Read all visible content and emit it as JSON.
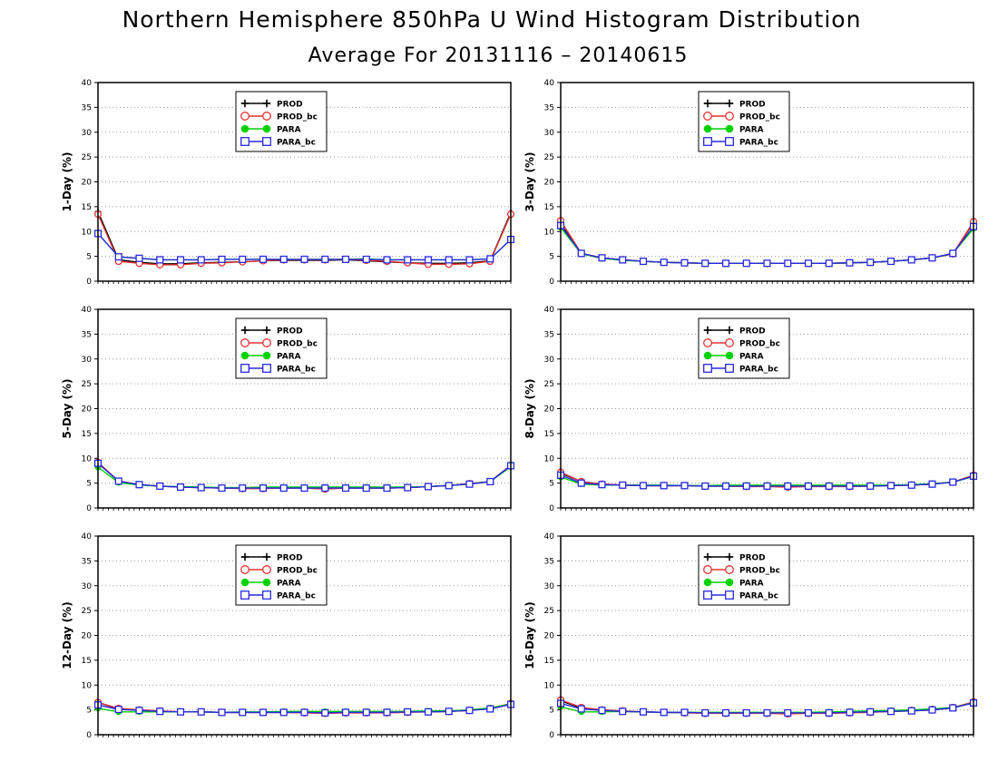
{
  "figure": {
    "title": "Northern Hemisphere 850hPa U Wind Histogram Distribution",
    "subtitle": "Average For 20131116 – 20140615"
  },
  "legend": {
    "placement": "upper-left-inside",
    "entries": [
      "PROD",
      "PROD_bc",
      "PARA",
      "PARA_bc"
    ]
  },
  "series_styles": [
    {
      "name": "PROD",
      "color": "#000000",
      "marker": "plus"
    },
    {
      "name": "PROD_bc",
      "color": "#e83232",
      "marker": "open-circle"
    },
    {
      "name": "PARA",
      "color": "#00d200",
      "marker": "filled-circle"
    },
    {
      "name": "PARA_bc",
      "color": "#2828e6",
      "marker": "open-square"
    }
  ],
  "chart_data": [
    {
      "type": "line",
      "ylabel": "1-Day (%)",
      "ylim": [
        0,
        40
      ],
      "yticks": [
        0,
        5,
        10,
        15,
        20,
        25,
        30,
        35,
        40
      ],
      "grid": "horizontal-dotted",
      "x": [
        1,
        2,
        3,
        4,
        5,
        6,
        7,
        8,
        9,
        10,
        11,
        12,
        13,
        14,
        15,
        16,
        17,
        18,
        19,
        20,
        21
      ],
      "series": [
        {
          "name": "PROD",
          "values": [
            14.0,
            4.3,
            3.8,
            3.5,
            3.5,
            3.7,
            3.8,
            3.9,
            4.1,
            4.2,
            4.2,
            4.2,
            4.3,
            4.1,
            3.9,
            3.7,
            3.6,
            3.6,
            3.7,
            4.1,
            13.8
          ]
        },
        {
          "name": "PROD_bc",
          "values": [
            13.5,
            4.0,
            3.6,
            3.3,
            3.3,
            3.6,
            3.7,
            3.9,
            4.1,
            4.3,
            4.3,
            4.3,
            4.4,
            4.2,
            4.0,
            3.7,
            3.4,
            3.4,
            3.5,
            4.0,
            13.5
          ]
        },
        {
          "name": "PARA",
          "values": [
            9.6,
            4.9,
            4.6,
            4.3,
            4.3,
            4.3,
            4.4,
            4.4,
            4.4,
            4.4,
            4.4,
            4.4,
            4.4,
            4.5,
            4.3,
            4.3,
            4.3,
            4.3,
            4.3,
            4.5,
            8.4
          ]
        },
        {
          "name": "PARA_bc",
          "values": [
            9.6,
            4.9,
            4.6,
            4.3,
            4.3,
            4.3,
            4.4,
            4.4,
            4.4,
            4.4,
            4.4,
            4.4,
            4.4,
            4.4,
            4.3,
            4.3,
            4.3,
            4.3,
            4.3,
            4.5,
            8.4
          ]
        }
      ]
    },
    {
      "type": "line",
      "ylabel": "3-Day (%)",
      "ylim": [
        0,
        40
      ],
      "yticks": [
        0,
        5,
        10,
        15,
        20,
        25,
        30,
        35,
        40
      ],
      "grid": "horizontal-dotted",
      "x": [
        1,
        2,
        3,
        4,
        5,
        6,
        7,
        8,
        9,
        10,
        11,
        12,
        13,
        14,
        15,
        16,
        17,
        18,
        19,
        20,
        21
      ],
      "series": [
        {
          "name": "PROD",
          "values": [
            11.5,
            5.6,
            4.7,
            4.3,
            4.0,
            3.8,
            3.7,
            3.6,
            3.6,
            3.6,
            3.6,
            3.6,
            3.6,
            3.6,
            3.7,
            3.8,
            4.0,
            4.3,
            4.7,
            5.5,
            11.8
          ]
        },
        {
          "name": "PROD_bc",
          "values": [
            12.2,
            5.6,
            4.7,
            4.3,
            4.0,
            3.8,
            3.7,
            3.6,
            3.6,
            3.6,
            3.6,
            3.6,
            3.6,
            3.6,
            3.7,
            3.8,
            4.0,
            4.3,
            4.7,
            5.5,
            12.0
          ]
        },
        {
          "name": "PARA",
          "values": [
            10.8,
            5.5,
            4.6,
            4.2,
            4.0,
            3.8,
            3.7,
            3.6,
            3.6,
            3.6,
            3.6,
            3.6,
            3.6,
            3.6,
            3.7,
            3.8,
            4.0,
            4.3,
            4.7,
            5.6,
            10.6
          ]
        },
        {
          "name": "PARA_bc",
          "values": [
            11.2,
            5.6,
            4.7,
            4.3,
            4.0,
            3.8,
            3.7,
            3.6,
            3.6,
            3.6,
            3.6,
            3.6,
            3.6,
            3.6,
            3.7,
            3.8,
            4.0,
            4.3,
            4.7,
            5.6,
            11.0
          ]
        }
      ]
    },
    {
      "type": "line",
      "ylabel": "5-Day (%)",
      "ylim": [
        0,
        40
      ],
      "yticks": [
        0,
        5,
        10,
        15,
        20,
        25,
        30,
        35,
        40
      ],
      "grid": "horizontal-dotted",
      "x": [
        1,
        2,
        3,
        4,
        5,
        6,
        7,
        8,
        9,
        10,
        11,
        12,
        13,
        14,
        15,
        16,
        17,
        18,
        19,
        20,
        21
      ],
      "series": [
        {
          "name": "PROD",
          "values": [
            9.0,
            5.4,
            4.7,
            4.4,
            4.2,
            4.1,
            4.0,
            4.0,
            4.0,
            4.0,
            4.0,
            3.9,
            4.0,
            4.0,
            4.0,
            4.1,
            4.3,
            4.5,
            4.9,
            5.3,
            8.6
          ]
        },
        {
          "name": "PROD_bc",
          "values": [
            9.2,
            5.4,
            4.7,
            4.4,
            4.2,
            4.1,
            4.0,
            3.9,
            3.9,
            4.0,
            4.0,
            3.8,
            4.0,
            4.0,
            4.0,
            4.1,
            4.3,
            4.5,
            4.9,
            5.3,
            8.6
          ]
        },
        {
          "name": "PARA",
          "values": [
            8.2,
            5.1,
            4.6,
            4.4,
            4.3,
            4.2,
            4.1,
            4.1,
            4.2,
            4.2,
            4.2,
            4.2,
            4.2,
            4.2,
            4.2,
            4.2,
            4.3,
            4.5,
            4.8,
            5.3,
            8.3
          ]
        },
        {
          "name": "PARA_bc",
          "values": [
            9.0,
            5.4,
            4.7,
            4.4,
            4.2,
            4.1,
            4.0,
            4.0,
            4.0,
            4.0,
            4.0,
            4.0,
            4.0,
            4.0,
            4.0,
            4.1,
            4.3,
            4.5,
            4.8,
            5.3,
            8.5
          ]
        }
      ]
    },
    {
      "type": "line",
      "ylabel": "8-Day (%)",
      "ylim": [
        0,
        40
      ],
      "yticks": [
        0,
        5,
        10,
        15,
        20,
        25,
        30,
        35,
        40
      ],
      "grid": "horizontal-dotted",
      "x": [
        1,
        2,
        3,
        4,
        5,
        6,
        7,
        8,
        9,
        10,
        11,
        12,
        13,
        14,
        15,
        16,
        17,
        18,
        19,
        20,
        21
      ],
      "series": [
        {
          "name": "PROD",
          "values": [
            7.0,
            5.3,
            4.8,
            4.6,
            4.5,
            4.5,
            4.5,
            4.4,
            4.4,
            4.4,
            4.4,
            4.3,
            4.4,
            4.4,
            4.4,
            4.4,
            4.5,
            4.6,
            4.8,
            5.2,
            6.5
          ]
        },
        {
          "name": "PROD_bc",
          "values": [
            7.2,
            5.3,
            4.8,
            4.6,
            4.5,
            4.5,
            4.5,
            4.4,
            4.4,
            4.3,
            4.3,
            4.2,
            4.3,
            4.3,
            4.3,
            4.4,
            4.5,
            4.6,
            4.8,
            5.2,
            6.6
          ]
        },
        {
          "name": "PARA",
          "values": [
            6.2,
            4.8,
            4.6,
            4.6,
            4.6,
            4.6,
            4.5,
            4.5,
            4.6,
            4.6,
            4.6,
            4.6,
            4.6,
            4.6,
            4.6,
            4.6,
            4.6,
            4.7,
            4.9,
            5.2,
            6.3
          ]
        },
        {
          "name": "PARA_bc",
          "values": [
            6.6,
            5.0,
            4.7,
            4.6,
            4.5,
            4.5,
            4.5,
            4.4,
            4.4,
            4.4,
            4.4,
            4.4,
            4.4,
            4.4,
            4.4,
            4.4,
            4.5,
            4.6,
            4.8,
            5.2,
            6.4
          ]
        }
      ]
    },
    {
      "type": "line",
      "ylabel": "12-Day (%)",
      "ylim": [
        0,
        40
      ],
      "yticks": [
        0,
        5,
        10,
        15,
        20,
        25,
        30,
        35,
        40
      ],
      "grid": "horizontal-dotted",
      "x": [
        1,
        2,
        3,
        4,
        5,
        6,
        7,
        8,
        9,
        10,
        11,
        12,
        13,
        14,
        15,
        16,
        17,
        18,
        19,
        20,
        21
      ],
      "series": [
        {
          "name": "PROD",
          "values": [
            6.5,
            5.2,
            4.9,
            4.7,
            4.6,
            4.6,
            4.5,
            4.5,
            4.5,
            4.5,
            4.5,
            4.4,
            4.5,
            4.5,
            4.5,
            4.6,
            4.6,
            4.7,
            4.9,
            5.3,
            6.2
          ]
        },
        {
          "name": "PROD_bc",
          "values": [
            6.5,
            5.3,
            5.0,
            4.8,
            4.6,
            4.6,
            4.5,
            4.5,
            4.5,
            4.5,
            4.4,
            4.3,
            4.4,
            4.4,
            4.4,
            4.5,
            4.6,
            4.7,
            4.9,
            5.3,
            6.3
          ]
        },
        {
          "name": "PARA",
          "values": [
            5.3,
            4.6,
            4.6,
            4.6,
            4.6,
            4.6,
            4.5,
            4.6,
            4.6,
            4.7,
            4.7,
            4.7,
            4.7,
            4.7,
            4.7,
            4.7,
            4.8,
            4.8,
            5.0,
            5.4,
            6.2
          ]
        },
        {
          "name": "PARA_bc",
          "values": [
            6.0,
            5.1,
            4.9,
            4.7,
            4.6,
            4.6,
            4.5,
            4.5,
            4.5,
            4.5,
            4.5,
            4.4,
            4.5,
            4.5,
            4.5,
            4.6,
            4.6,
            4.7,
            4.9,
            5.2,
            6.1
          ]
        }
      ]
    },
    {
      "type": "line",
      "ylabel": "16-Day (%)",
      "ylim": [
        0,
        40
      ],
      "yticks": [
        0,
        5,
        10,
        15,
        20,
        25,
        30,
        35,
        40
      ],
      "grid": "horizontal-dotted",
      "x": [
        1,
        2,
        3,
        4,
        5,
        6,
        7,
        8,
        9,
        10,
        11,
        12,
        13,
        14,
        15,
        16,
        17,
        18,
        19,
        20,
        21
      ],
      "series": [
        {
          "name": "PROD",
          "values": [
            6.8,
            5.4,
            5.0,
            4.7,
            4.6,
            4.5,
            4.5,
            4.4,
            4.4,
            4.4,
            4.4,
            4.4,
            4.4,
            4.4,
            4.5,
            4.6,
            4.7,
            4.8,
            5.0,
            5.4,
            6.5
          ]
        },
        {
          "name": "PROD_bc",
          "values": [
            7.0,
            5.5,
            5.0,
            4.8,
            4.6,
            4.5,
            4.4,
            4.3,
            4.3,
            4.3,
            4.3,
            4.2,
            4.3,
            4.3,
            4.4,
            4.5,
            4.7,
            4.9,
            5.1,
            5.5,
            6.6
          ]
        },
        {
          "name": "PARA",
          "values": [
            5.6,
            4.6,
            4.6,
            4.7,
            4.6,
            4.5,
            4.5,
            4.5,
            4.5,
            4.5,
            4.5,
            4.5,
            4.5,
            4.6,
            4.7,
            4.8,
            4.9,
            5.0,
            5.2,
            5.5,
            6.4
          ]
        },
        {
          "name": "PARA_bc",
          "values": [
            6.3,
            5.2,
            4.9,
            4.7,
            4.6,
            4.5,
            4.5,
            4.4,
            4.4,
            4.4,
            4.4,
            4.4,
            4.4,
            4.4,
            4.5,
            4.6,
            4.7,
            4.8,
            5.0,
            5.4,
            6.4
          ]
        }
      ]
    }
  ]
}
